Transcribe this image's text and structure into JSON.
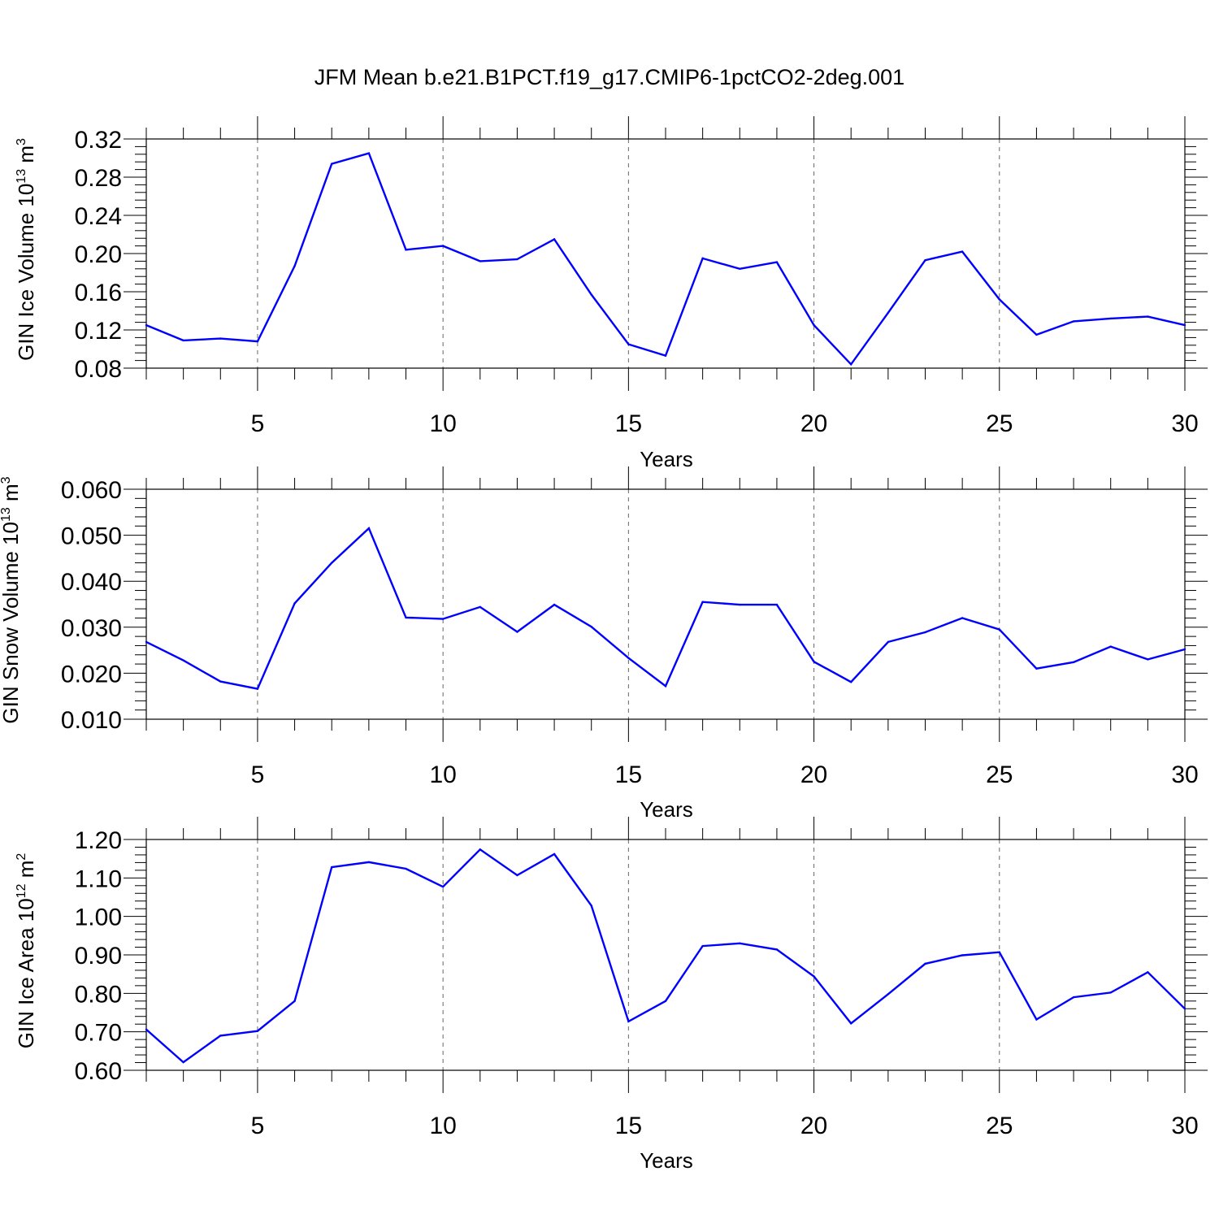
{
  "title": "JFM Mean b.e21.B1PCT.f19_g17.CMIP6-1pctCO2-2deg.001",
  "line_color": "#0000ff",
  "chart_data": [
    {
      "type": "line",
      "title": "JFM Mean b.e21.B1PCT.f19_g17.CMIP6-1pctCO2-2deg.001",
      "xlabel": "Years",
      "ylabel": "GIN Ice Volume 10",
      "ylabel_sup": "13",
      "ylabel_unit": "m",
      "ylabel_unit_sup": "3",
      "x": [
        2,
        3,
        4,
        5,
        6,
        7,
        8,
        9,
        10,
        11,
        12,
        13,
        14,
        15,
        16,
        17,
        18,
        19,
        20,
        21,
        22,
        23,
        24,
        25,
        26,
        27,
        28,
        29,
        30
      ],
      "y": [
        0.125,
        0.109,
        0.111,
        0.108,
        0.187,
        0.294,
        0.305,
        0.204,
        0.208,
        0.192,
        0.194,
        0.215,
        0.157,
        0.105,
        0.093,
        0.195,
        0.184,
        0.191,
        0.125,
        0.084,
        0.138,
        0.193,
        0.202,
        0.152,
        0.115,
        0.129,
        0.132,
        0.134,
        0.125
      ],
      "xlim": [
        2,
        30
      ],
      "ylim": [
        0.08,
        0.32
      ],
      "xticks": [
        5,
        10,
        15,
        20,
        25,
        30
      ],
      "xtick_labels": [
        "5",
        "10",
        "15",
        "20",
        "25",
        "30"
      ],
      "yticks": [
        0.08,
        0.12,
        0.16,
        0.2,
        0.24,
        0.28,
        0.32
      ],
      "ytick_labels": [
        "0.08",
        "0.12",
        "0.16",
        "0.20",
        "0.24",
        "0.28",
        "0.32"
      ],
      "grid": "vertical dashed at major x ticks",
      "legend": "none"
    },
    {
      "type": "line",
      "xlabel": "Years",
      "ylabel": "GIN Snow Volume 10",
      "ylabel_sup": "13",
      "ylabel_unit": "m",
      "ylabel_unit_sup": "3",
      "x": [
        2,
        3,
        4,
        5,
        6,
        7,
        8,
        9,
        10,
        11,
        12,
        13,
        14,
        15,
        16,
        17,
        18,
        19,
        20,
        21,
        22,
        23,
        24,
        25,
        26,
        27,
        28,
        29,
        30
      ],
      "y": [
        0.0268,
        0.0228,
        0.0182,
        0.0166,
        0.0352,
        0.044,
        0.0515,
        0.0321,
        0.0318,
        0.0344,
        0.029,
        0.0349,
        0.0301,
        0.0233,
        0.0172,
        0.0355,
        0.0349,
        0.0349,
        0.0225,
        0.0181,
        0.0268,
        0.0289,
        0.032,
        0.0295,
        0.021,
        0.0224,
        0.0258,
        0.023,
        0.0252
      ],
      "xlim": [
        2,
        30
      ],
      "ylim": [
        0.01,
        0.06
      ],
      "xticks": [
        5,
        10,
        15,
        20,
        25,
        30
      ],
      "xtick_labels": [
        "5",
        "10",
        "15",
        "20",
        "25",
        "30"
      ],
      "yticks": [
        0.01,
        0.02,
        0.03,
        0.04,
        0.05,
        0.06
      ],
      "ytick_labels": [
        "0.010",
        "0.020",
        "0.030",
        "0.040",
        "0.050",
        "0.060"
      ],
      "grid": "vertical dashed at major x ticks",
      "legend": "none"
    },
    {
      "type": "line",
      "xlabel": "Years",
      "ylabel": "GIN Ice Area 10",
      "ylabel_sup": "12",
      "ylabel_unit": "m",
      "ylabel_unit_sup": "2",
      "x": [
        2,
        3,
        4,
        5,
        6,
        7,
        8,
        9,
        10,
        11,
        12,
        13,
        14,
        15,
        16,
        17,
        18,
        19,
        20,
        21,
        22,
        23,
        24,
        25,
        26,
        27,
        28,
        29,
        30
      ],
      "y": [
        0.706,
        0.621,
        0.69,
        0.702,
        0.78,
        1.128,
        1.141,
        1.124,
        1.077,
        1.174,
        1.107,
        1.162,
        1.028,
        0.727,
        0.78,
        0.923,
        0.93,
        0.914,
        0.844,
        0.722,
        0.798,
        0.877,
        0.899,
        0.907,
        0.732,
        0.79,
        0.802,
        0.855,
        0.76
      ],
      "xlim": [
        2,
        30
      ],
      "ylim": [
        0.6,
        1.2
      ],
      "xticks": [
        5,
        10,
        15,
        20,
        25,
        30
      ],
      "xtick_labels": [
        "5",
        "10",
        "15",
        "20",
        "25",
        "30"
      ],
      "yticks": [
        0.6,
        0.7,
        0.8,
        0.9,
        1.0,
        1.1,
        1.2
      ],
      "ytick_labels": [
        "0.60",
        "0.70",
        "0.80",
        "0.90",
        "1.00",
        "1.10",
        "1.20"
      ],
      "grid": "vertical dashed at major x ticks",
      "legend": "none"
    }
  ]
}
